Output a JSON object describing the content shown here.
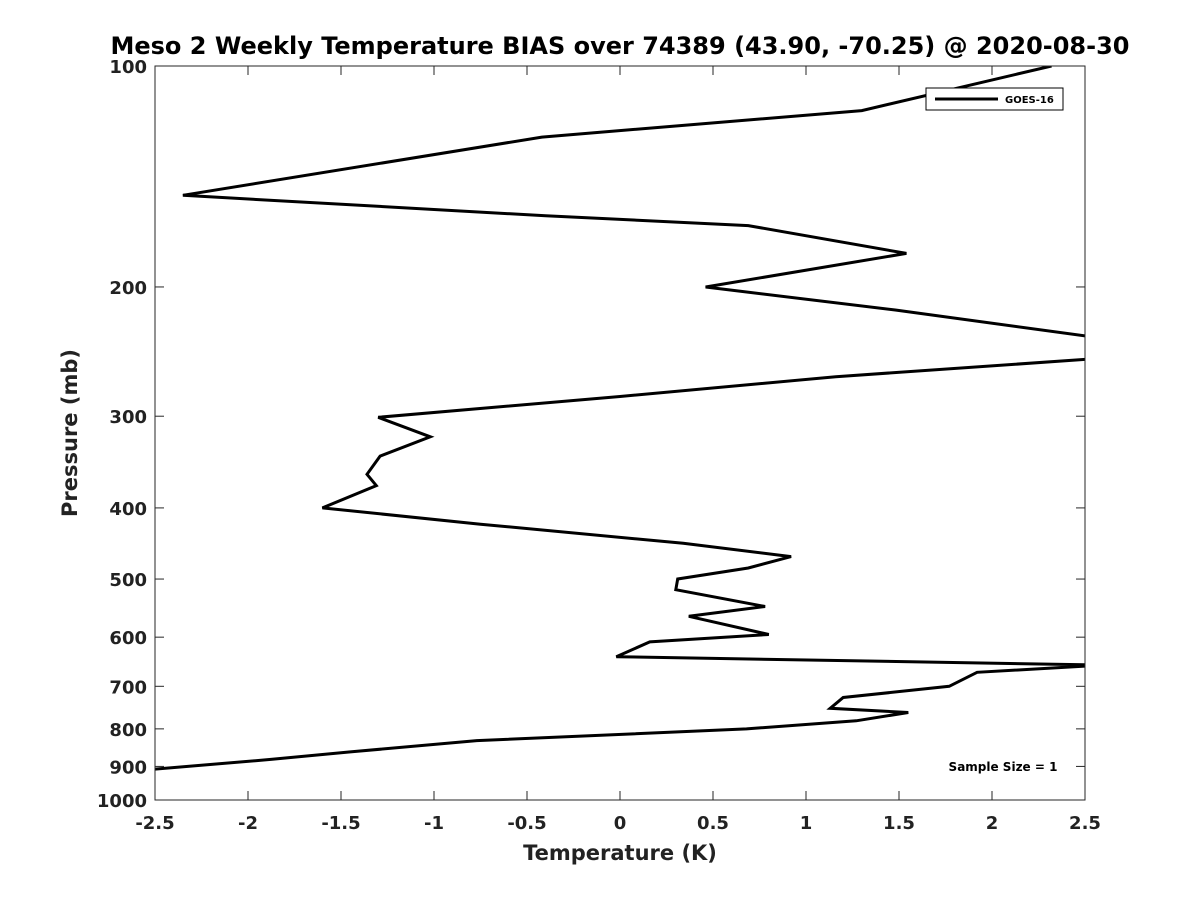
{
  "chart_data": {
    "type": "line",
    "title": "Meso 2 Weekly Temperature BIAS over 74389 (43.90, -70.25) @ 2020-08-30",
    "xlabel": "Temperature (K)",
    "ylabel": "Pressure (mb)",
    "xlim": [
      -2.5,
      2.5
    ],
    "ylim": [
      100,
      1000
    ],
    "y_scale": "log",
    "y_reversed": true,
    "grid": false,
    "xticks": [
      -2.5,
      -2,
      -1.5,
      -1,
      -0.5,
      0,
      0.5,
      1,
      1.5,
      2,
      2.5
    ],
    "xtick_labels": [
      "-2.5",
      "-2",
      "-1.5",
      "-1",
      "-0.5",
      "0",
      "0.5",
      "1",
      "1.5",
      "2",
      "2.5"
    ],
    "yticks": [
      100,
      200,
      300,
      400,
      500,
      600,
      700,
      800,
      900,
      1000
    ],
    "ytick_labels": [
      "100",
      "200",
      "300",
      "400",
      "500",
      "600",
      "700",
      "800",
      "900",
      "1000"
    ],
    "legend": {
      "placement": "top-right",
      "entries": [
        "GOES-16"
      ]
    },
    "annotation": "Sample Size = 1",
    "line_color": "#000000",
    "series": [
      {
        "name": "GOES-16",
        "x": [
          2.32,
          1.3,
          -0.42,
          -2.35,
          -0.4,
          0.69,
          1.54,
          0.46,
          1.48,
          2.6,
          2.6,
          1.16,
          0.0,
          -1.3,
          -1.02,
          -1.29,
          -1.36,
          -1.31,
          -1.6,
          -0.75,
          0.34,
          0.92,
          0.69,
          0.31,
          0.3,
          0.78,
          0.37,
          0.8,
          0.16,
          -0.02,
          2.6,
          1.92,
          1.77,
          1.2,
          1.13,
          1.55,
          1.27,
          0.68,
          -0.77,
          -1.45,
          -1.87,
          -2.55
        ],
        "y": [
          100,
          115,
          125,
          150,
          160,
          165,
          180,
          200,
          215,
          235,
          250,
          265,
          282,
          301,
          320,
          340,
          360,
          373,
          400,
          421,
          447,
          466,
          483,
          500,
          517,
          545,
          562,
          595,
          609,
          638,
          655,
          670,
          700,
          725,
          750,
          760,
          780,
          800,
          830,
          860,
          880,
          910
        ]
      }
    ]
  }
}
